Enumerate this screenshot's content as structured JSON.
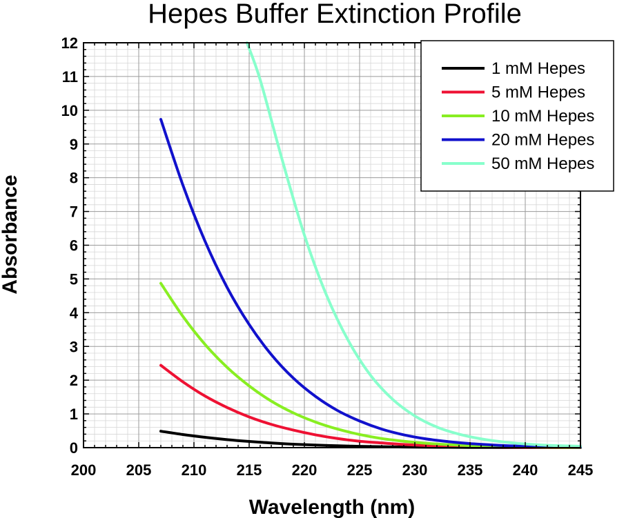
{
  "chart_data": {
    "type": "line",
    "title": "Hepes Buffer Extinction Profile",
    "xlabel": "Wavelength (nm)",
    "ylabel": "Absorbance",
    "xlim": [
      200,
      245
    ],
    "ylim": [
      0,
      12
    ],
    "xticks": [
      200,
      205,
      210,
      215,
      220,
      225,
      230,
      235,
      240,
      245
    ],
    "yticks": [
      0,
      1,
      2,
      3,
      4,
      5,
      6,
      7,
      8,
      9,
      10,
      11,
      12
    ],
    "grid": true,
    "legend_position": "top-right",
    "series": [
      {
        "name": "1 mM Hepes",
        "color": "#000000",
        "x": [
          207,
          209,
          211,
          213,
          215,
          217,
          219,
          221,
          223,
          225,
          227,
          229,
          231,
          233,
          235,
          237,
          239,
          241,
          243,
          245
        ],
        "y": [
          0.487,
          0.389,
          0.306,
          0.238,
          0.183,
          0.138,
          0.103,
          0.076,
          0.055,
          0.039,
          0.027,
          0.019,
          0.013,
          0.009,
          0.006,
          0.004,
          0.003,
          0.002,
          0.001,
          0.001
        ]
      },
      {
        "name": "5 mM Hepes",
        "color": "#ee1133",
        "x": [
          207,
          209,
          211,
          213,
          215,
          217,
          219,
          221,
          223,
          225,
          227,
          229,
          231,
          233,
          235,
          237,
          239,
          241,
          243,
          245
        ],
        "y": [
          2.44,
          1.95,
          1.53,
          1.19,
          0.91,
          0.69,
          0.52,
          0.38,
          0.27,
          0.19,
          0.14,
          0.095,
          0.065,
          0.044,
          0.03,
          0.02,
          0.013,
          0.009,
          0.006,
          0.004
        ]
      },
      {
        "name": "10 mM Hepes",
        "color": "#88ee22",
        "x": [
          207,
          209,
          211,
          213,
          215,
          217,
          219,
          221,
          223,
          225,
          227,
          229,
          231,
          233,
          235,
          237,
          239,
          241,
          243,
          245
        ],
        "y": [
          4.87,
          3.89,
          3.06,
          2.38,
          1.83,
          1.38,
          1.03,
          0.76,
          0.55,
          0.39,
          0.27,
          0.19,
          0.13,
          0.09,
          0.06,
          0.04,
          0.027,
          0.018,
          0.012,
          0.008
        ]
      },
      {
        "name": "20 mM Hepes",
        "color": "#1111cc",
        "x": [
          207,
          209,
          211,
          213,
          215,
          217,
          219,
          221,
          223,
          225,
          227,
          229,
          231,
          233,
          235,
          237,
          239,
          241,
          243,
          245
        ],
        "y": [
          9.73,
          7.78,
          6.12,
          4.75,
          3.65,
          2.76,
          2.06,
          1.52,
          1.1,
          0.79,
          0.55,
          0.38,
          0.26,
          0.18,
          0.12,
          0.08,
          0.05,
          0.035,
          0.023,
          0.015
        ]
      },
      {
        "name": "50 mM Hepes",
        "color": "#88ffcc",
        "x": [
          214.8,
          216,
          218,
          220,
          222,
          224,
          226,
          228,
          230,
          232,
          234,
          236,
          238,
          240,
          242,
          244,
          245
        ],
        "y": [
          12.0,
          10.9,
          8.52,
          6.3,
          4.52,
          3.16,
          2.14,
          1.43,
          0.94,
          0.61,
          0.4,
          0.26,
          0.17,
          0.11,
          0.07,
          0.05,
          0.04
        ]
      }
    ]
  }
}
